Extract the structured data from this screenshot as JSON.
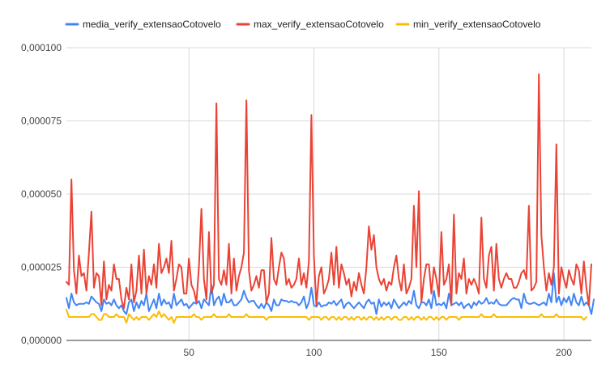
{
  "chart_data": {
    "type": "line",
    "title": "",
    "xlabel": "",
    "ylabel": "",
    "xlim": [
      1,
      211
    ],
    "ylim": [
      0,
      0.0001
    ],
    "grid": true,
    "legend_position": "top",
    "x_ticks": [
      50,
      100,
      150,
      200
    ],
    "x_tick_labels": [
      "50",
      "100",
      "150",
      "200"
    ],
    "y_ticks": [
      0,
      2.5e-05,
      5e-05,
      7.5e-05,
      0.0001
    ],
    "y_tick_labels": [
      "0,000000",
      "0,000025",
      "0,000050",
      "0,000075",
      "0,000100"
    ],
    "series": [
      {
        "name": "media_verify_extensaoCotovelo",
        "color": "#4285F4",
        "values": [
          1.45e-05,
          1.1e-05,
          1.6e-05,
          1.3e-05,
          1.2e-05,
          1.25e-05,
          1.25e-05,
          1.25e-05,
          1.3e-05,
          1.25e-05,
          1.5e-05,
          1.4e-05,
          1.3e-05,
          1.25e-05,
          1e-05,
          1.4e-05,
          1.25e-05,
          1.3e-05,
          1.2e-05,
          1.4e-05,
          1.2e-05,
          1.1e-05,
          1.2e-05,
          1e-05,
          9e-06,
          1.3e-05,
          1.4e-05,
          1e-05,
          1.3e-05,
          1.1e-05,
          1.35e-05,
          1.2e-05,
          1.6e-05,
          1e-05,
          1.2e-05,
          1.4e-05,
          1.1e-05,
          1.6e-05,
          1.2e-05,
          1.4e-05,
          1.25e-05,
          1.3e-05,
          1.1e-05,
          1.6e-05,
          1.2e-05,
          1.3e-05,
          1.4e-05,
          1.2e-05,
          1.25e-05,
          1.1e-05,
          1.2e-05,
          1.3e-05,
          1.25e-05,
          1.35e-05,
          1.1e-05,
          1.4e-05,
          1.3e-05,
          1.2e-05,
          1.9e-05,
          1.2e-05,
          1.4e-05,
          1.5e-05,
          1.2e-05,
          1.6e-05,
          1.3e-05,
          1.3e-05,
          1.4e-05,
          1.2e-05,
          1.2e-05,
          1.3e-05,
          1.4e-05,
          1.7e-05,
          1.45e-05,
          1.3e-05,
          1.35e-05,
          1.35e-05,
          1.2e-05,
          1.1e-05,
          1.25e-05,
          1.1e-05,
          1.3e-05,
          1.2e-05,
          1e-05,
          1.4e-05,
          1.2e-05,
          1.2e-05,
          1.4e-05,
          1.35e-05,
          1.35e-05,
          1.3e-05,
          1.35e-05,
          1.3e-05,
          1.3e-05,
          1.2e-05,
          1.3e-05,
          1.5e-05,
          1.1e-05,
          1.3e-05,
          1.8e-05,
          1.2e-05,
          1.15e-05,
          1.3e-05,
          1.15e-05,
          1.2e-05,
          1.2e-05,
          1.3e-05,
          1.25e-05,
          1.35e-05,
          1.2e-05,
          1.3e-05,
          1.4e-05,
          1.1e-05,
          1.25e-05,
          1.3e-05,
          1.2e-05,
          1.1e-05,
          1.2e-05,
          1.3e-05,
          1.2e-05,
          1.1e-05,
          1.3e-05,
          1.4e-05,
          1.25e-05,
          1.3e-05,
          9e-06,
          1.4e-05,
          1.15e-05,
          1.3e-05,
          1.2e-05,
          1.3e-05,
          1.1e-05,
          1.4e-05,
          1.25e-05,
          1.1e-05,
          1.2e-05,
          1.3e-05,
          1.2e-05,
          1.35e-05,
          1.25e-05,
          1.7e-05,
          1.2e-05,
          1.1e-05,
          1.3e-05,
          1.3e-05,
          1.2e-05,
          1.4e-05,
          1.1e-05,
          1.7e-05,
          1.2e-05,
          1.25e-05,
          1.2e-05,
          1.3e-05,
          1.1e-05,
          1.6e-05,
          1.2e-05,
          1.25e-05,
          1.3e-05,
          1.2e-05,
          1.3e-05,
          1.1e-05,
          1.2e-05,
          1.25e-05,
          1.1e-05,
          1.3e-05,
          1.2e-05,
          1.35e-05,
          1.25e-05,
          1.3e-05,
          1.45e-05,
          1.25e-05,
          1.3e-05,
          1.25e-05,
          1.4e-05,
          1.25e-05,
          1.2e-05,
          1.2e-05,
          1.2e-05,
          1.3e-05,
          1.4e-05,
          1.45e-05,
          1.4e-05,
          1.4e-05,
          1.1e-05,
          1.6e-05,
          1.3e-05,
          1.25e-05,
          1.25e-05,
          1.3e-05,
          1.25e-05,
          1.2e-05,
          1.25e-05,
          1.3e-05,
          1.2e-05,
          1.6e-05,
          1.3e-05,
          2.3e-05,
          1.3e-05,
          1.5e-05,
          1.2e-05,
          1.45e-05,
          1.3e-05,
          1.5e-05,
          1.2e-05,
          1.6e-05,
          1.3e-05,
          1.2e-05,
          1.5e-05,
          1.2e-05,
          1.3e-05,
          1.2e-05,
          9e-06,
          1.4e-05
        ]
      },
      {
        "name": "max_verify_extensaoCotovelo",
        "color": "#EA4335",
        "values": [
          2e-05,
          1.9e-05,
          5.5e-05,
          2.4e-05,
          1.6e-05,
          2.9e-05,
          2.2e-05,
          2.3e-05,
          1.7e-05,
          3e-05,
          4.4e-05,
          1.8e-05,
          2.3e-05,
          2.2e-05,
          1.2e-05,
          2.7e-05,
          1.4e-05,
          1.9e-05,
          1.7e-05,
          2.6e-05,
          2.1e-05,
          2.1e-05,
          1.4e-05,
          1.1e-05,
          1.8e-05,
          1.4e-05,
          2.6e-05,
          1.3e-05,
          1.7e-05,
          2.9e-05,
          1.6e-05,
          3.1e-05,
          1.6e-05,
          2.2e-05,
          1.9e-05,
          2.6e-05,
          1.8e-05,
          3.3e-05,
          2.3e-05,
          2.5e-05,
          2.8e-05,
          2.3e-05,
          3.4e-05,
          1.7e-05,
          2.1e-05,
          2.6e-05,
          2.5e-05,
          1.6e-05,
          1.6e-05,
          2.8e-05,
          1.9e-05,
          1.7e-05,
          1.3e-05,
          2.5e-05,
          4.5e-05,
          2.1e-05,
          1.4e-05,
          3.7e-05,
          1.6e-05,
          1.9e-05,
          8.1e-05,
          2.1e-05,
          1.9e-05,
          2.4e-05,
          1.9e-05,
          3.3e-05,
          1.6e-05,
          2.8e-05,
          1.7e-05,
          2.2e-05,
          2.5e-05,
          3e-05,
          8.2e-05,
          2.4e-05,
          1.7e-05,
          1.9e-05,
          2.2e-05,
          1.8e-05,
          2.4e-05,
          2.4e-05,
          1.3e-05,
          1.6e-05,
          3.5e-05,
          2.1e-05,
          1.9e-05,
          2.5e-05,
          3e-05,
          2.8e-05,
          1.9e-05,
          2.1e-05,
          1.8e-05,
          1.9e-05,
          2.1e-05,
          2.8e-05,
          1.9e-05,
          2.3e-05,
          1.8e-05,
          2.7e-05,
          7.7e-05,
          2.9e-05,
          1.2e-05,
          2.2e-05,
          2.5e-05,
          1.6e-05,
          1.8e-05,
          2.1e-05,
          3e-05,
          1.9e-05,
          3.2e-05,
          1.8e-05,
          2.6e-05,
          2.3e-05,
          1.9e-05,
          2.1e-05,
          1.5e-05,
          2e-05,
          1.7e-05,
          2.3e-05,
          1.9e-05,
          1.6e-05,
          2.5e-05,
          3.9e-05,
          3.1e-05,
          3.6e-05,
          2.5e-05,
          2.1e-05,
          1.9e-05,
          2.1e-05,
          1.7e-05,
          2e-05,
          1.9e-05,
          2.5e-05,
          2.9e-05,
          2.1e-05,
          1.7e-05,
          2.6e-05,
          1.6e-05,
          1.8e-05,
          2.1e-05,
          4.6e-05,
          2.5e-05,
          5.1e-05,
          1.3e-05,
          2.1e-05,
          2.6e-05,
          2.6e-05,
          1.6e-05,
          2.5e-05,
          2.1e-05,
          1.5e-05,
          3.7e-05,
          1.9e-05,
          2.1e-05,
          2.6e-05,
          1.2e-05,
          4.3e-05,
          1.6e-05,
          2.3e-05,
          2.1e-05,
          2.8e-05,
          1.6e-05,
          2.1e-05,
          1.9e-05,
          2.1e-05,
          1.9e-05,
          1.6e-05,
          4.2e-05,
          2.1e-05,
          1.8e-05,
          2.9e-05,
          3.2e-05,
          1.7e-05,
          3.3e-05,
          2.1e-05,
          1.8e-05,
          2.1e-05,
          2.3e-05,
          2.1e-05,
          2.1e-05,
          1.8e-05,
          1.8e-05,
          2e-05,
          2.3e-05,
          2.4e-05,
          2.1e-05,
          4.6e-05,
          1.7e-05,
          1.8e-05,
          2e-05,
          9.1e-05,
          3.6e-05,
          2.5e-05,
          1.7e-05,
          2.3e-05,
          1.9e-05,
          2.5e-05,
          6.7e-05,
          1.6e-05,
          2.5e-05,
          2.1e-05,
          1.8e-05,
          2.4e-05,
          2.1e-05,
          1.9e-05,
          2.6e-05,
          2.4e-05,
          1.6e-05,
          2.7e-05,
          1.8e-05,
          1.2e-05,
          2.6e-05
        ]
      },
      {
        "name": "min_verify_extensaoCotovelo",
        "color": "#FBBC04",
        "values": [
          1.05e-05,
          8e-06,
          8e-06,
          8e-06,
          8e-06,
          8e-06,
          8e-06,
          8e-06,
          8e-06,
          8e-06,
          9e-06,
          9e-06,
          8e-06,
          7e-06,
          7e-06,
          9e-06,
          9e-06,
          8e-06,
          8e-06,
          8e-06,
          9e-06,
          8e-06,
          8e-06,
          8e-06,
          6e-06,
          9e-06,
          8e-06,
          7e-06,
          8e-06,
          7e-06,
          8e-06,
          8e-06,
          8e-06,
          7e-06,
          8e-06,
          9e-06,
          8e-06,
          1e-05,
          8e-06,
          9e-06,
          8e-06,
          7e-06,
          8e-06,
          6e-06,
          8e-06,
          8e-06,
          8e-06,
          8e-06,
          8e-06,
          8e-06,
          8e-06,
          9e-06,
          8e-06,
          8e-06,
          7e-06,
          8e-06,
          8e-06,
          8e-06,
          8e-06,
          9e-06,
          8e-06,
          8e-06,
          8e-06,
          8e-06,
          8e-06,
          9e-06,
          8e-06,
          8e-06,
          8e-06,
          8e-06,
          8e-06,
          8e-06,
          9e-06,
          8e-06,
          8e-06,
          8e-06,
          8e-06,
          8e-06,
          8e-06,
          8e-06,
          7e-06,
          8e-06,
          8e-06,
          8e-06,
          8e-06,
          8e-06,
          8e-06,
          8e-06,
          8e-06,
          8e-06,
          8e-06,
          8e-06,
          8e-06,
          8e-06,
          8e-06,
          8e-06,
          8e-06,
          7e-06,
          8e-06,
          8e-06,
          8e-06,
          8e-06,
          7e-06,
          8e-06,
          8e-06,
          7e-06,
          8e-06,
          8e-06,
          7e-06,
          8e-06,
          7e-06,
          8e-06,
          8e-06,
          7e-06,
          8e-06,
          7e-06,
          8e-06,
          8e-06,
          7e-06,
          8e-06,
          7e-06,
          8e-06,
          8e-06,
          7e-06,
          8e-06,
          7e-06,
          8e-06,
          7e-06,
          8e-06,
          8e-06,
          7e-06,
          8e-06,
          8e-06,
          7e-06,
          7e-06,
          8e-06,
          8e-06,
          7e-06,
          8e-06,
          7e-06,
          8e-06,
          8e-06,
          7e-06,
          8e-06,
          7e-06,
          8e-06,
          8e-06,
          7e-06,
          8e-06,
          7e-06,
          8e-06,
          8e-06,
          7e-06,
          8e-06,
          8e-06,
          8e-06,
          8e-06,
          7e-06,
          8e-06,
          8e-06,
          8e-06,
          8e-06,
          8e-06,
          8e-06,
          8e-06,
          8e-06,
          9e-06,
          8e-06,
          8e-06,
          8e-06,
          8e-06,
          9e-06,
          8e-06,
          8e-06,
          8e-06,
          8e-06,
          8e-06,
          8e-06,
          8e-06,
          8e-06,
          8e-06,
          8e-06,
          8e-06,
          8e-06,
          8e-06,
          8e-06,
          8e-06,
          8e-06,
          8e-06,
          8e-06,
          9e-06,
          8e-06,
          8e-06,
          8e-06,
          8e-06,
          8e-06,
          9e-06,
          8e-06,
          8e-06,
          8e-06,
          8e-06,
          8e-06,
          8e-06,
          8e-06,
          8e-06,
          8e-06,
          8e-06,
          7e-06,
          8e-06
        ]
      }
    ]
  }
}
